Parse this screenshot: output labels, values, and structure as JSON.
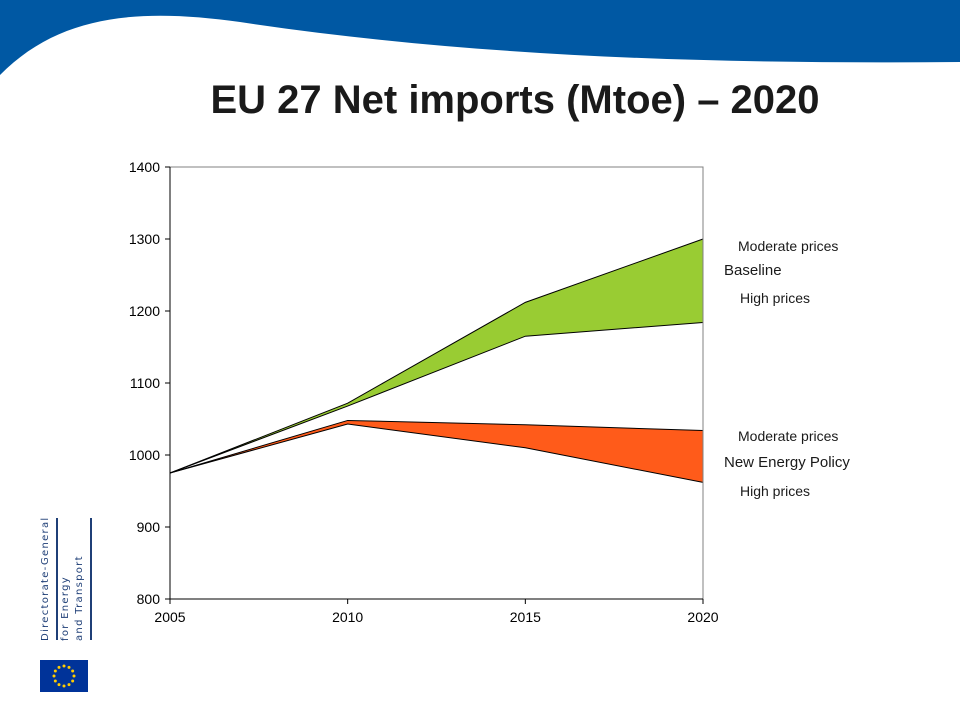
{
  "page": {
    "title": "EU 27 Net imports (Mtoe) – 2020",
    "logo_text": [
      "Directorate-General",
      "for Energy",
      "and Transport"
    ],
    "brand_blue": "#0058a3",
    "logo_blue": "#1f3f77",
    "flag_blue": "#003399",
    "flag_star": "#ffcc00"
  },
  "chart_data": {
    "type": "area",
    "title": "EU 27 Net imports (Mtoe) – 2020",
    "xlabel": "",
    "ylabel": "",
    "x": [
      2005,
      2010,
      2015,
      2020
    ],
    "ylim": [
      800,
      1400
    ],
    "yticks": [
      800,
      900,
      1000,
      1100,
      1200,
      1300,
      1400
    ],
    "xticks": [
      2005,
      2010,
      2015,
      2020
    ],
    "grid": false,
    "bands": [
      {
        "name": "Baseline",
        "upper_name": "Moderate prices",
        "lower_name": "High prices",
        "upper": [
          975,
          1072,
          1212,
          1300
        ],
        "lower": [
          975,
          1068,
          1165,
          1184
        ],
        "color": "#99cc33"
      },
      {
        "name": "New Energy Policy",
        "upper_name": "Moderate prices",
        "lower_name": "High prices",
        "upper": [
          975,
          1048,
          1042,
          1034
        ],
        "lower": [
          975,
          1043,
          1010,
          962
        ],
        "color": "#ff5b1a"
      }
    ]
  }
}
